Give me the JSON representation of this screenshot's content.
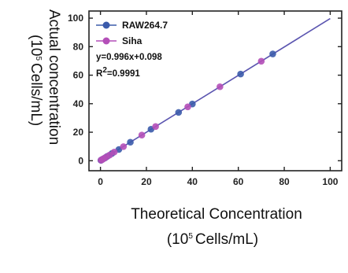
{
  "chart_data": {
    "type": "scatter",
    "xlabel_line1": "Theoretical Concentration",
    "xlabel_line2_unit": "Cells/mL)",
    "xlabel_line2_prefix": "(10",
    "xlabel_line2_sup": "5",
    "ylabel_line1": "Actual concentration",
    "ylabel_line2_prefix": "(10",
    "ylabel_line2_sup": "5",
    "ylabel_line2_unit": "Cells/mL)",
    "xlim": [
      -5,
      105
    ],
    "ylim": [
      -7,
      105
    ],
    "xticks": [
      "0",
      "20",
      "40",
      "60",
      "80",
      "100"
    ],
    "yticks": [
      "0",
      "20",
      "40",
      "60",
      "80",
      "100"
    ],
    "legend_position": "top-left",
    "equation": "y=0.996x+0.098",
    "r2_prefix": "R",
    "r2_sup": "2",
    "r2_value": "=0.9991",
    "fit": {
      "slope": 0.996,
      "intercept": 0.098,
      "x_range": [
        0,
        100
      ],
      "color": "#5b55b0"
    },
    "series": [
      {
        "name": "RAW264.7",
        "color": "#3b5bab",
        "x": [
          0.2,
          0.5,
          1,
          2,
          3,
          5,
          8,
          13,
          22,
          34,
          40,
          61,
          75
        ],
        "y": [
          0.3,
          0.6,
          1.1,
          2.0,
          3.1,
          5.1,
          7.9,
          13.0,
          22.1,
          33.9,
          39.8,
          60.8,
          74.9
        ]
      },
      {
        "name": "Siha",
        "color": "#b44fb8",
        "x": [
          0.3,
          0.8,
          1.5,
          2.5,
          4,
          6,
          10,
          18,
          24,
          38,
          52,
          70
        ],
        "y": [
          0.4,
          0.9,
          1.6,
          2.6,
          4.0,
          6.1,
          9.9,
          18.0,
          24.0,
          37.8,
          51.9,
          69.8
        ]
      }
    ]
  }
}
